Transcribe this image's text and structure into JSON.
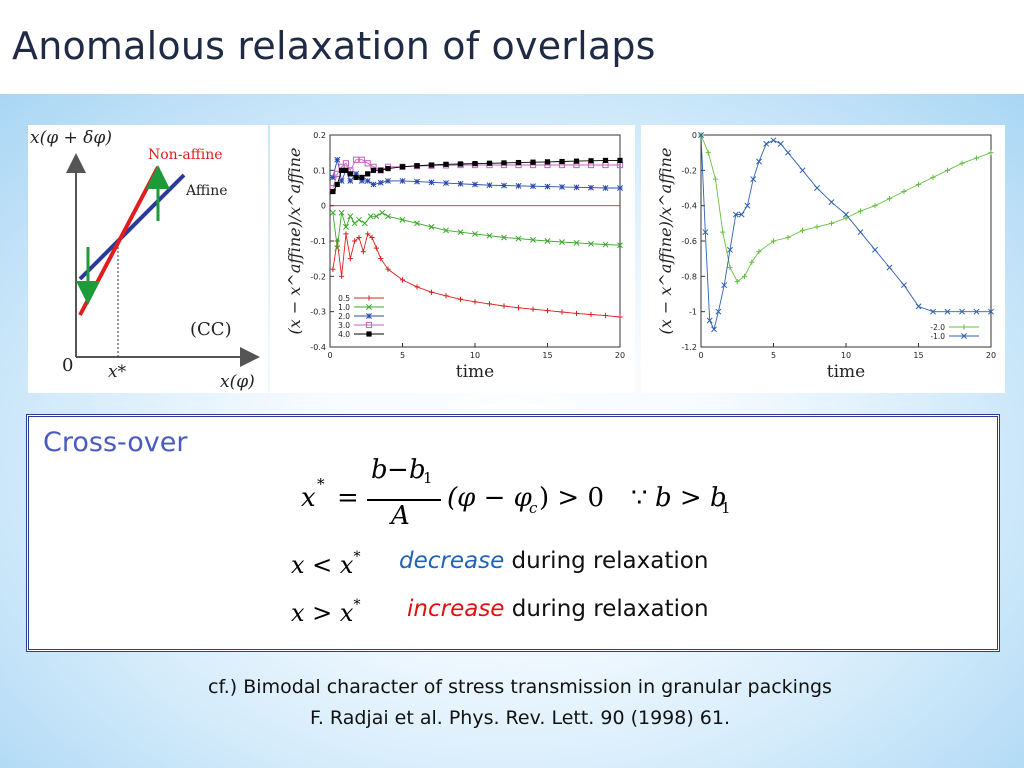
{
  "slide": {
    "title": "Anomalous relaxation of overlaps"
  },
  "schematic": {
    "y_label": "x(φ + δφ)",
    "x_label": "x(φ)",
    "origin_label": "0",
    "xstar_label": "x*",
    "nonaffine_label": "Non-affine",
    "affine_label": "Affine",
    "case_label": "(CC)",
    "nonaffine_color": "#e01e1e",
    "affine_color": "#2a3a9c",
    "arrow_color": "#1e9a3a"
  },
  "chart_data": [
    {
      "type": "line",
      "xlabel": "time",
      "ylabel": "(x − x^affine)/x^affine",
      "xlim": [
        0,
        20
      ],
      "ylim": [
        -0.4,
        0.2
      ],
      "xticks": [
        0,
        5,
        10,
        15,
        20
      ],
      "yticks": [
        0.2,
        0.1,
        0,
        -0.1,
        -0.2,
        -0.3,
        -0.4
      ],
      "yticklabels": [
        "0.2",
        "0.1",
        "0",
        "-0.1",
        "-0.2",
        "-0.3",
        "-0.4"
      ],
      "legend_position": "bottom-left",
      "series": [
        {
          "name": "0.5",
          "color": "#e02020",
          "marker": "plus",
          "x": [
            0.2,
            0.5,
            0.8,
            1.1,
            1.4,
            1.7,
            2.0,
            2.3,
            2.6,
            2.9,
            3.2,
            3.5,
            4,
            5,
            6,
            7,
            8,
            9,
            10,
            11,
            12,
            13,
            14,
            15,
            16,
            17,
            18,
            19,
            20
          ],
          "y": [
            -0.18,
            -0.1,
            -0.2,
            -0.08,
            -0.15,
            -0.1,
            -0.09,
            -0.13,
            -0.08,
            -0.09,
            -0.12,
            -0.15,
            -0.18,
            -0.21,
            -0.23,
            -0.245,
            -0.255,
            -0.265,
            -0.272,
            -0.278,
            -0.284,
            -0.289,
            -0.293,
            -0.297,
            -0.301,
            -0.305,
            -0.308,
            -0.311,
            -0.315
          ]
        },
        {
          "name": "1.0",
          "color": "#3aa82a",
          "marker": "cross",
          "x": [
            0.2,
            0.5,
            0.8,
            1.1,
            1.4,
            1.7,
            2.0,
            2.4,
            2.8,
            3.2,
            3.6,
            4,
            5,
            6,
            7,
            8,
            9,
            10,
            11,
            12,
            13,
            14,
            15,
            16,
            17,
            18,
            19,
            20
          ],
          "y": [
            -0.02,
            -0.12,
            -0.02,
            -0.06,
            -0.03,
            -0.05,
            -0.04,
            -0.05,
            -0.03,
            -0.03,
            -0.02,
            -0.03,
            -0.04,
            -0.05,
            -0.06,
            -0.07,
            -0.075,
            -0.08,
            -0.085,
            -0.09,
            -0.093,
            -0.097,
            -0.1,
            -0.103,
            -0.105,
            -0.108,
            -0.11,
            -0.112
          ]
        },
        {
          "name": "2.0",
          "color": "#2a4ab0",
          "marker": "star",
          "x": [
            0.2,
            0.5,
            0.8,
            1.1,
            1.4,
            1.8,
            2.2,
            2.6,
            3.0,
            3.5,
            4,
            5,
            6,
            7,
            8,
            9,
            10,
            11,
            12,
            13,
            14,
            15,
            16,
            17,
            18,
            19,
            20
          ],
          "y": [
            0.08,
            0.13,
            0.07,
            0.1,
            0.07,
            0.09,
            0.07,
            0.07,
            0.06,
            0.065,
            0.07,
            0.07,
            0.068,
            0.066,
            0.064,
            0.062,
            0.06,
            0.058,
            0.057,
            0.056,
            0.055,
            0.054,
            0.053,
            0.052,
            0.051,
            0.05,
            0.05
          ]
        },
        {
          "name": "3.0",
          "color": "#c860c0",
          "marker": "square-open",
          "x": [
            0.2,
            0.5,
            0.8,
            1.1,
            1.4,
            1.8,
            2.2,
            2.6,
            3.0,
            3.5,
            4,
            5,
            6,
            7,
            8,
            9,
            10,
            11,
            12,
            13,
            14,
            15,
            16,
            17,
            18,
            19,
            20
          ],
          "y": [
            0.05,
            0.09,
            0.11,
            0.12,
            0.1,
            0.13,
            0.13,
            0.12,
            0.11,
            0.1,
            0.11,
            0.11,
            0.112,
            0.113,
            0.114,
            0.115,
            0.115,
            0.115,
            0.115,
            0.115,
            0.115,
            0.115,
            0.115,
            0.115,
            0.115,
            0.115,
            0.115
          ]
        },
        {
          "name": "4.0",
          "color": "#000000",
          "marker": "square-filled",
          "x": [
            0.2,
            0.5,
            0.8,
            1.1,
            1.4,
            1.8,
            2.2,
            2.6,
            3.0,
            3.5,
            4,
            5,
            6,
            7,
            8,
            9,
            10,
            11,
            12,
            13,
            14,
            15,
            16,
            17,
            18,
            19,
            20
          ],
          "y": [
            0.04,
            0.06,
            0.1,
            0.1,
            0.09,
            0.08,
            0.08,
            0.09,
            0.1,
            0.1,
            0.105,
            0.11,
            0.113,
            0.115,
            0.117,
            0.118,
            0.119,
            0.12,
            0.121,
            0.122,
            0.123,
            0.124,
            0.125,
            0.126,
            0.127,
            0.128,
            0.128
          ]
        }
      ]
    },
    {
      "type": "line",
      "xlabel": "time",
      "ylabel": "(x − x^affine)/x^affine",
      "xlim": [
        0,
        20
      ],
      "ylim": [
        -1.2,
        0
      ],
      "xticks": [
        0,
        5,
        10,
        15,
        20
      ],
      "yticks": [
        0,
        -0.2,
        -0.4,
        -0.6,
        -0.8,
        -1,
        -1.2
      ],
      "yticklabels": [
        "0",
        "-0.2",
        "-0.4",
        "-0.6",
        "-0.8",
        "-1",
        "-1.2"
      ],
      "legend_position": "bottom-right",
      "series": [
        {
          "name": "-2.0",
          "color": "#66c040",
          "marker": "plus",
          "x": [
            0,
            0.5,
            1.0,
            1.5,
            2.0,
            2.5,
            3.0,
            3.5,
            4,
            5,
            6,
            7,
            8,
            9,
            10,
            11,
            12,
            13,
            14,
            15,
            16,
            17,
            18,
            19,
            20
          ],
          "y": [
            0,
            -0.1,
            -0.25,
            -0.55,
            -0.75,
            -0.83,
            -0.8,
            -0.72,
            -0.66,
            -0.6,
            -0.58,
            -0.54,
            -0.52,
            -0.5,
            -0.47,
            -0.43,
            -0.4,
            -0.36,
            -0.32,
            -0.28,
            -0.24,
            -0.2,
            -0.16,
            -0.13,
            -0.1
          ]
        },
        {
          "name": "-1.0",
          "color": "#3060b0",
          "marker": "cross",
          "x": [
            0,
            0.3,
            0.6,
            0.9,
            1.2,
            1.6,
            2.0,
            2.4,
            2.8,
            3.2,
            3.6,
            4.0,
            4.5,
            5.0,
            5.5,
            6,
            7,
            8,
            9,
            10,
            11,
            12,
            13,
            14,
            15,
            16,
            17,
            18,
            19,
            20
          ],
          "y": [
            0,
            -0.55,
            -1.05,
            -1.1,
            -1.0,
            -0.85,
            -0.65,
            -0.45,
            -0.45,
            -0.4,
            -0.25,
            -0.15,
            -0.05,
            -0.03,
            -0.05,
            -0.1,
            -0.2,
            -0.3,
            -0.38,
            -0.45,
            -0.55,
            -0.65,
            -0.75,
            -0.85,
            -0.97,
            -1.0,
            -1.0,
            -1.0,
            -1.0,
            -1.0
          ]
        }
      ]
    }
  ],
  "crossover": {
    "title": "Cross-over",
    "eq_lhs": "x",
    "eq_lhs_sup": "*",
    "eq_equals": "=",
    "eq_num_b": "b",
    "eq_num_minus": "−",
    "eq_num_b1": "b",
    "eq_num_sub": "1",
    "eq_den": "A",
    "eq_phi": "(φ − φ",
    "eq_phi_sub": "c",
    "eq_close": ") > 0",
    "eq_because": "∵",
    "eq_b_gt": "b > b",
    "eq_b_sub": "1",
    "cond1_lhs": "x < x",
    "cond1_sup": "*",
    "cond1_keyword": "decrease",
    "cond1_keyword_color": "#1f63b8",
    "cond1_rest": " during relaxation",
    "cond2_lhs": "x > x",
    "cond2_sup": "*",
    "cond2_keyword": "increase",
    "cond2_keyword_color": "#e01010",
    "cond2_rest": " during relaxation"
  },
  "reference": {
    "line1": "cf.) Bimodal character of stress transmission in granular packings",
    "line2": "F. Radjai et al. Phys. Rev. Lett. 90 (1998) 61."
  }
}
